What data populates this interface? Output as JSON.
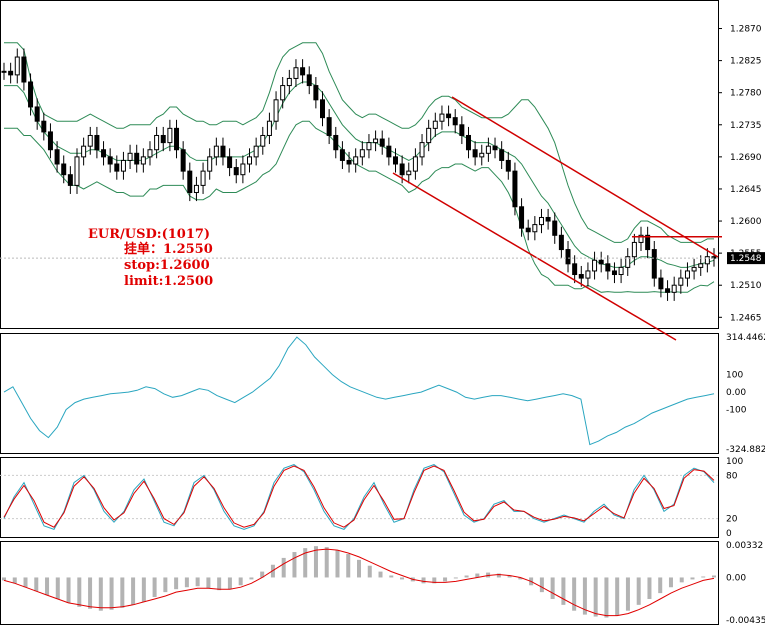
{
  "chart_data": [
    {
      "type": "line",
      "title": "",
      "price_axis": {
        "ticks": [
          1.287,
          1.2825,
          1.278,
          1.2735,
          1.269,
          1.2645,
          1.26,
          1.2555,
          1.251,
          1.2465
        ],
        "tick_labels": [
          "1.2870",
          "1.2825",
          "1.2780",
          "1.2735",
          "1.2690",
          "1.2645",
          "1.2600",
          "1.2555",
          "1.2510",
          "1.2465"
        ],
        "current_price": "1.2548",
        "ylim": [
          1.245,
          1.291
        ]
      },
      "series": [
        {
          "values": [
            1.281,
            1.2805,
            1.283,
            1.2795,
            1.276,
            1.274,
            1.2725,
            1.27,
            1.268,
            1.2665,
            1.265,
            1.269,
            1.2705,
            1.272,
            1.27,
            1.269,
            1.268,
            1.267,
            1.2685,
            1.2695,
            1.268,
            1.269,
            1.27,
            1.272,
            1.271,
            1.273,
            1.27,
            1.267,
            1.264,
            1.265,
            1.267,
            1.269,
            1.2705,
            1.269,
            1.2675,
            1.2665,
            1.268,
            1.269,
            1.2705,
            1.272,
            1.274,
            1.277,
            1.279,
            1.28,
            1.2815,
            1.2805,
            1.279,
            1.277,
            1.2745,
            1.272,
            1.27,
            1.2685,
            1.268,
            1.269,
            1.27,
            1.271,
            1.2715,
            1.2705,
            1.269,
            1.268,
            1.2665,
            1.267,
            1.269,
            1.271,
            1.273,
            1.274,
            1.275,
            1.2745,
            1.2735,
            1.272,
            1.27,
            1.269,
            1.2695,
            1.2705,
            1.27,
            1.2685,
            1.267,
            1.262,
            1.259,
            1.2585,
            1.2595,
            1.2605,
            1.26,
            1.258,
            1.256,
            1.254,
            1.2525,
            1.252,
            1.253,
            1.2545,
            1.254,
            1.253,
            1.2525,
            1.2535,
            1.255,
            1.257,
            1.258,
            1.256,
            1.252,
            1.2505,
            1.25,
            1.251,
            1.252,
            1.253,
            1.2535,
            1.254,
            1.255,
            1.2548
          ]
        },
        {
          "values": [
            1.285,
            1.285,
            1.285,
            1.284,
            1.28,
            1.277,
            1.275,
            1.2745,
            1.274,
            1.274,
            1.274,
            1.274,
            1.2745,
            1.275,
            1.2745,
            1.274,
            1.2735,
            1.273,
            1.273,
            1.2735,
            1.2735,
            1.2735,
            1.2735,
            1.2745,
            1.275,
            1.276,
            1.276,
            1.275,
            1.2745,
            1.274,
            1.274,
            1.2735,
            1.2735,
            1.274,
            1.274,
            1.274,
            1.2735,
            1.274,
            1.2745,
            1.2755,
            1.278,
            1.281,
            1.283,
            1.284,
            1.2845,
            1.285,
            1.285,
            1.285,
            1.2835,
            1.281,
            1.279,
            1.277,
            1.276,
            1.275,
            1.2745,
            1.275,
            1.275,
            1.2745,
            1.274,
            1.2735,
            1.273,
            1.273,
            1.2735,
            1.2745,
            1.276,
            1.277,
            1.2775,
            1.2775,
            1.277,
            1.276,
            1.2755,
            1.275,
            1.2745,
            1.2745,
            1.2745,
            1.2745,
            1.275,
            1.276,
            1.277,
            1.277,
            1.276,
            1.2745,
            1.273,
            1.271,
            1.268,
            1.265,
            1.2625,
            1.2605,
            1.259,
            1.2585,
            1.258,
            1.2575,
            1.257,
            1.257,
            1.2575,
            1.259,
            1.26,
            1.26,
            1.2595,
            1.259,
            1.258,
            1.2575,
            1.257,
            1.257,
            1.257,
            1.257,
            1.2575,
            1.2575
          ]
        },
        {
          "values": [
            1.279,
            1.279,
            1.279,
            1.278,
            1.276,
            1.274,
            1.2725,
            1.2715,
            1.2705,
            1.27,
            1.2695,
            1.2695,
            1.2695,
            1.27,
            1.27,
            1.2695,
            1.269,
            1.2685,
            1.2685,
            1.2685,
            1.2685,
            1.2685,
            1.269,
            1.2695,
            1.27,
            1.2705,
            1.2705,
            1.27,
            1.269,
            1.2685,
            1.2685,
            1.2685,
            1.269,
            1.269,
            1.269,
            1.269,
            1.269,
            1.2695,
            1.27,
            1.271,
            1.2725,
            1.2745,
            1.2765,
            1.278,
            1.279,
            1.2795,
            1.2795,
            1.279,
            1.278,
            1.2765,
            1.275,
            1.2735,
            1.2725,
            1.2715,
            1.271,
            1.271,
            1.271,
            1.2705,
            1.27,
            1.2695,
            1.269,
            1.2685,
            1.269,
            1.27,
            1.271,
            1.272,
            1.2725,
            1.2725,
            1.2725,
            1.272,
            1.2715,
            1.271,
            1.271,
            1.271,
            1.2705,
            1.27,
            1.2695,
            1.269,
            1.268,
            1.2665,
            1.265,
            1.2635,
            1.2625,
            1.261,
            1.2595,
            1.258,
            1.2565,
            1.2555,
            1.255,
            1.2545,
            1.254,
            1.2538,
            1.2535,
            1.2535,
            1.2538,
            1.2545,
            1.255,
            1.255,
            1.2548,
            1.2545,
            1.254,
            1.2538,
            1.2535,
            1.2535,
            1.2538,
            1.254,
            1.2542,
            1.2545
          ]
        },
        {
          "values": [
            1.273,
            1.273,
            1.273,
            1.272,
            1.272,
            1.271,
            1.27,
            1.2685,
            1.267,
            1.266,
            1.265,
            1.265,
            1.2645,
            1.265,
            1.2655,
            1.265,
            1.2645,
            1.264,
            1.264,
            1.2635,
            1.2635,
            1.2635,
            1.2645,
            1.2645,
            1.265,
            1.265,
            1.265,
            1.265,
            1.2635,
            1.263,
            1.263,
            1.2635,
            1.2645,
            1.264,
            1.264,
            1.264,
            1.2645,
            1.265,
            1.2655,
            1.2665,
            1.267,
            1.268,
            1.27,
            1.272,
            1.2735,
            1.274,
            1.274,
            1.273,
            1.2725,
            1.272,
            1.271,
            1.27,
            1.269,
            1.268,
            1.2675,
            1.267,
            1.267,
            1.2665,
            1.266,
            1.2655,
            1.265,
            1.264,
            1.2645,
            1.2655,
            1.266,
            1.267,
            1.2675,
            1.2675,
            1.268,
            1.268,
            1.2675,
            1.267,
            1.2675,
            1.2675,
            1.2665,
            1.2655,
            1.264,
            1.262,
            1.259,
            1.256,
            1.254,
            1.2525,
            1.252,
            1.251,
            1.251,
            1.251,
            1.2505,
            1.2505,
            1.251,
            1.2505,
            1.25,
            1.2501,
            1.25,
            1.25,
            1.2501,
            1.25,
            1.25,
            1.25,
            1.2501,
            1.25,
            1.25,
            1.2501,
            1.25,
            1.25,
            1.2506,
            1.251,
            1.2509,
            1.2515
          ]
        }
      ]
    },
    {
      "type": "line",
      "ylim": [
        -324.882,
        314.4462
      ],
      "tick_labels": [
        "314.4462",
        "100",
        "0.00",
        "-100",
        "-324.882"
      ],
      "values": [
        0,
        30,
        -60,
        -150,
        -220,
        -260,
        -200,
        -100,
        -60,
        -40,
        -30,
        -20,
        -10,
        -5,
        0,
        10,
        30,
        20,
        -10,
        -30,
        -20,
        0,
        20,
        10,
        -20,
        -40,
        -60,
        -30,
        0,
        40,
        80,
        150,
        250,
        314,
        270,
        200,
        150,
        100,
        60,
        30,
        10,
        -10,
        -30,
        -40,
        -30,
        -20,
        -10,
        0,
        20,
        40,
        20,
        0,
        -30,
        -40,
        -30,
        -20,
        -20,
        -30,
        -40,
        -50,
        -40,
        -30,
        -20,
        -10,
        -20,
        -40,
        -300,
        -280,
        -250,
        -230,
        -200,
        -180,
        -150,
        -120,
        -100,
        -80,
        -60,
        -40,
        -30,
        -20,
        -10
      ]
    },
    {
      "type": "line",
      "ylim": [
        0,
        100
      ],
      "tick_labels": [
        "100",
        "80",
        "20",
        "0"
      ],
      "series": [
        {
          "values": [
            20,
            50,
            70,
            40,
            10,
            5,
            30,
            70,
            80,
            60,
            30,
            15,
            30,
            60,
            75,
            45,
            15,
            10,
            30,
            70,
            80,
            60,
            30,
            10,
            5,
            10,
            30,
            70,
            90,
            95,
            85,
            60,
            30,
            10,
            5,
            20,
            50,
            70,
            40,
            15,
            20,
            60,
            90,
            95,
            85,
            55,
            25,
            15,
            20,
            40,
            45,
            30,
            30,
            20,
            15,
            20,
            25,
            20,
            15,
            30,
            40,
            25,
            20,
            60,
            80,
            60,
            30,
            40,
            80,
            90,
            85,
            70
          ]
        },
        {
          "values": [
            22,
            47,
            66,
            45,
            15,
            8,
            28,
            65,
            78,
            62,
            35,
            18,
            28,
            55,
            72,
            48,
            20,
            12,
            28,
            65,
            78,
            62,
            35,
            14,
            8,
            12,
            28,
            65,
            87,
            93,
            87,
            64,
            35,
            14,
            8,
            18,
            46,
            66,
            44,
            19,
            20,
            56,
            87,
            93,
            87,
            59,
            29,
            17,
            19,
            37,
            43,
            32,
            30,
            22,
            17,
            19,
            23,
            21,
            17,
            27,
            37,
            27,
            21,
            55,
            76,
            62,
            34,
            38,
            76,
            88,
            86,
            73
          ]
        }
      ]
    },
    {
      "type": "bar",
      "ylim": [
        -0.00435,
        0.00332
      ],
      "tick_labels": [
        "0.00332",
        "0.00",
        "-0.00435"
      ],
      "values": [
        -0.0003,
        -0.0006,
        -0.001,
        -0.0014,
        -0.0018,
        -0.0022,
        -0.0026,
        -0.003,
        -0.0032,
        -0.0034,
        -0.0033,
        -0.0031,
        -0.0028,
        -0.0025,
        -0.002,
        -0.0015,
        -0.0012,
        -0.001,
        -0.0009,
        -0.0011,
        -0.0013,
        -0.0012,
        -0.0008,
        -0.0002,
        0.0006,
        0.0013,
        0.002,
        0.0026,
        0.003,
        0.0032,
        0.0031,
        0.0028,
        0.0024,
        0.0018,
        0.0012,
        0.0006,
        0.0002,
        -0.0002,
        -0.0004,
        -0.0006,
        -0.0006,
        -0.0004,
        -0.0001,
        0.0002,
        0.0004,
        0.0005,
        0.0004,
        0.0002,
        -0.0002,
        -0.0008,
        -0.0015,
        -0.0022,
        -0.0028,
        -0.0034,
        -0.0038,
        -0.004,
        -0.0041,
        -0.0039,
        -0.0034,
        -0.0028,
        -0.0022,
        -0.0016,
        -0.001,
        -0.0005,
        -0.0002,
        0.0001,
        0.0002
      ],
      "signal": [
        -0.0003,
        -0.0006,
        -0.001,
        -0.0014,
        -0.0018,
        -0.0022,
        -0.0026,
        -0.0028,
        -0.003,
        -0.0031,
        -0.0031,
        -0.003,
        -0.0028,
        -0.0025,
        -0.0022,
        -0.0019,
        -0.0015,
        -0.0013,
        -0.0011,
        -0.0011,
        -0.0012,
        -0.0012,
        -0.001,
        -0.0006,
        0.0,
        0.0007,
        0.0014,
        0.002,
        0.0025,
        0.0028,
        0.0029,
        0.0028,
        0.0025,
        0.0021,
        0.0016,
        0.0011,
        0.0006,
        0.0002,
        -0.0002,
        -0.0004,
        -0.0005,
        -0.0005,
        -0.0004,
        -0.0002,
        0.0,
        0.0002,
        0.0003,
        0.0002,
        0.0,
        -0.0004,
        -0.001,
        -0.0016,
        -0.0022,
        -0.0028,
        -0.0033,
        -0.0037,
        -0.0039,
        -0.0039,
        -0.0037,
        -0.0033,
        -0.0028,
        -0.0022,
        -0.0016,
        -0.0011,
        -0.0007,
        -0.0003,
        -0.0001
      ]
    }
  ],
  "annotation": {
    "line1": "EUR/USD:(1017)",
    "line2": "挂单：1.2550",
    "line3": "stop:1.2600",
    "line4": "limit:1.2500"
  },
  "colors": {
    "candle": "#000000",
    "band": "#2e8b57",
    "cci": "#2aa6c0",
    "stoch_main": "#2aa6c0",
    "stoch_signal": "#e00000",
    "macd_hist": "#b3b3b3",
    "macd_signal": "#e00000",
    "channel": "#d00000"
  }
}
